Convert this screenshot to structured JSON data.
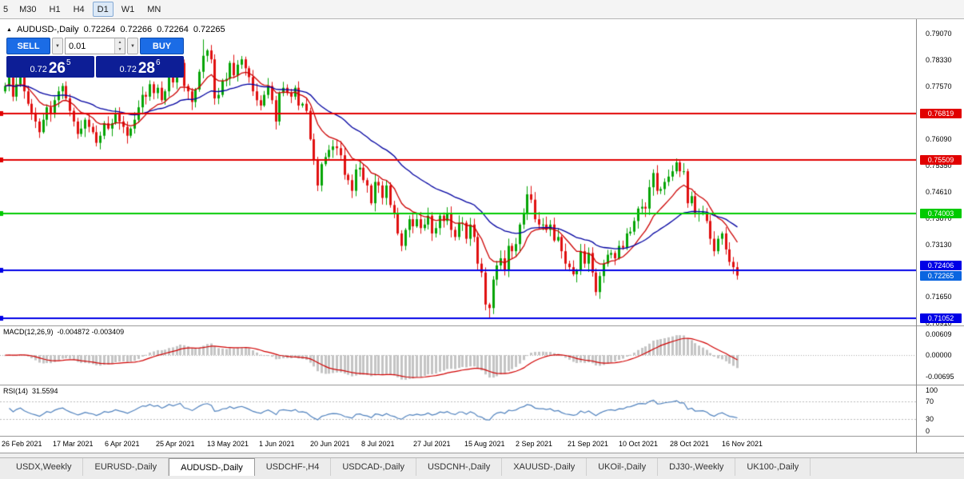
{
  "toolbar": {
    "timeframes": [
      "5",
      "M30",
      "H1",
      "H4",
      "D1",
      "W1",
      "MN"
    ],
    "active": "D1"
  },
  "icons": {
    "readout_marker": "▲",
    "dropdown": "▼",
    "spin_up": "▲",
    "spin_down": "▼"
  },
  "readout": {
    "symbol": "AUDUSD-,Daily",
    "open": "0.72264",
    "high": "0.72266",
    "low": "0.72264",
    "close": "0.72265"
  },
  "trade_panel": {
    "sell_label": "SELL",
    "buy_label": "BUY",
    "volume": "0.01",
    "sell_price": {
      "prefix": "0.72",
      "big": "26",
      "sup": "5"
    },
    "buy_price": {
      "prefix": "0.72",
      "big": "28",
      "sup": "6"
    }
  },
  "price_axis": {
    "ticks": [
      "0.79070",
      "0.78330",
      "0.77570",
      "0.76090",
      "0.75350",
      "0.74610",
      "0.73870",
      "0.73130",
      "0.71650",
      "0.70910"
    ]
  },
  "levels": [
    {
      "label": "0.76819",
      "price": 0.76819,
      "color": "#e10000"
    },
    {
      "label": "0.75509",
      "price": 0.75509,
      "color": "#e10000"
    },
    {
      "label": "0.74003",
      "price": 0.74003,
      "color": "#00ca00"
    },
    {
      "label": "0.72406",
      "price": 0.72406,
      "color": "#0000e6"
    },
    {
      "label": "0.71052",
      "price": 0.71052,
      "color": "#0000e6"
    }
  ],
  "bid_badge": {
    "label": "0.72265",
    "price": 0.72265,
    "color": "#0a65e0"
  },
  "macd_panel": {
    "title": "MACD(12,26,9)",
    "values": "-0.004872 -0.003409",
    "axis": [
      "0.00609",
      "0.00000",
      "-0.00695"
    ]
  },
  "rsi_panel": {
    "title": "RSI(14)",
    "value": "31.5594",
    "axis": [
      "100",
      "70",
      "30",
      "0"
    ]
  },
  "tabs": [
    "USDX,Weekly",
    "EURUSD-,Daily",
    "AUDUSD-,Daily",
    "USDCHF-,H4",
    "USDCAD-,Daily",
    "USDCNH-,Daily",
    "XAUUSD-,Daily",
    "UKOil-,Daily",
    "DJ30-,Weekly",
    "UK100-,Daily"
  ],
  "active_tab": "AUDUSD-,Daily",
  "chart_data": {
    "type": "candlestick",
    "symbol": "AUDUSD-",
    "timeframe": "Daily",
    "price_range": {
      "max": 0.7948,
      "min": 0.7086
    },
    "up_color": "#04a404",
    "down_color": "#e01010",
    "x_labels": [
      "26 Feb 2021",
      "17 Mar 2021",
      "6 Apr 2021",
      "25 Apr 2021",
      "13 May 2021",
      "1 Jun 2021",
      "20 Jun 2021",
      "8 Jul 2021",
      "27 Jul 2021",
      "15 Aug 2021",
      "2 Sep 2021",
      "21 Sep 2021",
      "10 Oct 2021",
      "28 Oct 2021",
      "16 Nov 2021"
    ],
    "closes": [
      0.776,
      0.7785,
      0.773,
      0.7765,
      0.779,
      0.7745,
      0.771,
      0.7685,
      0.766,
      0.763,
      0.7665,
      0.77,
      0.768,
      0.772,
      0.7745,
      0.776,
      0.7725,
      0.769,
      0.766,
      0.7625,
      0.764,
      0.7665,
      0.7645,
      0.763,
      0.76,
      0.762,
      0.7655,
      0.764,
      0.7655,
      0.768,
      0.766,
      0.7645,
      0.762,
      0.764,
      0.7665,
      0.77,
      0.7735,
      0.773,
      0.7765,
      0.774,
      0.7755,
      0.772,
      0.7745,
      0.779,
      0.777,
      0.78,
      0.7825,
      0.776,
      0.7745,
      0.7715,
      0.775,
      0.78,
      0.7845,
      0.786,
      0.7835,
      0.7725,
      0.7735,
      0.7775,
      0.778,
      0.7825,
      0.779,
      0.782,
      0.7835,
      0.781,
      0.7785,
      0.7745,
      0.772,
      0.7705,
      0.7735,
      0.776,
      0.772,
      0.766,
      0.774,
      0.7755,
      0.774,
      0.773,
      0.7755,
      0.7705,
      0.771,
      0.769,
      0.761,
      0.755,
      0.748,
      0.754,
      0.756,
      0.758,
      0.759,
      0.7585,
      0.7565,
      0.751,
      0.7495,
      0.7465,
      0.7525,
      0.753,
      0.7495,
      0.748,
      0.743,
      0.749,
      0.748,
      0.7445,
      0.748,
      0.7425,
      0.74,
      0.7345,
      0.731,
      0.7355,
      0.7385,
      0.7365,
      0.7385,
      0.736,
      0.737,
      0.7395,
      0.7345,
      0.736,
      0.7395,
      0.738,
      0.74,
      0.7355,
      0.7335,
      0.7375,
      0.7375,
      0.733,
      0.737,
      0.7335,
      0.726,
      0.7235,
      0.7145,
      0.7135,
      0.7215,
      0.7255,
      0.7275,
      0.724,
      0.731,
      0.7295,
      0.7315,
      0.737,
      0.74,
      0.7455,
      0.744,
      0.7385,
      0.737,
      0.737,
      0.7355,
      0.737,
      0.7325,
      0.7335,
      0.7295,
      0.726,
      0.725,
      0.723,
      0.724,
      0.7295,
      0.726,
      0.729,
      0.7235,
      0.718,
      0.7225,
      0.726,
      0.7285,
      0.729,
      0.7275,
      0.731,
      0.7305,
      0.7345,
      0.735,
      0.738,
      0.7415,
      0.742,
      0.7415,
      0.7475,
      0.7515,
      0.7465,
      0.747,
      0.749,
      0.7505,
      0.752,
      0.7545,
      0.752,
      0.752,
      0.743,
      0.745,
      0.74,
      0.7402,
      0.7405,
      0.738,
      0.733,
      0.7295,
      0.733,
      0.7345,
      0.73,
      0.7265,
      0.725,
      0.72265
    ],
    "wick_overrides": {
      "52": {
        "h": 0.7891
      },
      "127": {
        "l": 0.7106
      },
      "137": {
        "h": 0.7478
      },
      "155": {
        "l": 0.717
      },
      "176": {
        "h": 0.7556
      },
      "192": {
        "l": 0.7215
      }
    },
    "moving_averages": [
      {
        "type": "EMA",
        "period": 12,
        "color": "#cc0000"
      },
      {
        "type": "EMA",
        "period": 36,
        "color": "#0000a0"
      }
    ],
    "macd": {
      "fast": 12,
      "slow": 26,
      "signal": 9,
      "range": {
        "max": 0.00609,
        "min": -0.00695
      },
      "histogram_color": "#c4c4c4",
      "signal_color": "#d00000"
    },
    "rsi": {
      "period": 14,
      "levels": [
        70,
        30
      ],
      "color": "#4f81bd"
    }
  }
}
